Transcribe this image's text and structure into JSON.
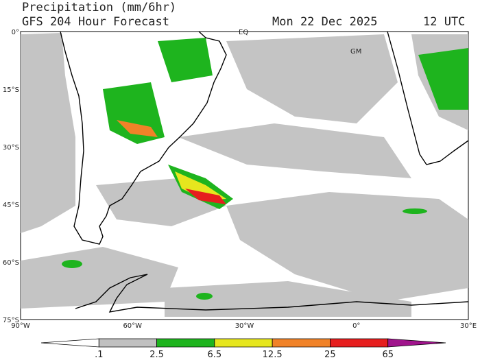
{
  "header": {
    "title": "Precipitation (mm/6hr)",
    "subtitle": "GFS 204 Hour Forecast",
    "date": "Mon 22 Dec 2025",
    "time": "12 UTC"
  },
  "map": {
    "labels": [
      "EQ",
      "GM"
    ],
    "lat_labels": [
      "0°",
      "15°S",
      "30°S",
      "45°S",
      "60°S",
      "75°S"
    ],
    "lon_labels": [
      "90°W",
      "60°W",
      "30°W",
      "0°",
      "30°E"
    ]
  },
  "colorbar": {
    "labels": [
      ".1",
      "2.5",
      "6.5",
      "12.5",
      "25",
      "65"
    ],
    "colors": [
      "#ffffff",
      "#c0c0c0",
      "#1eb41e",
      "#e6e61e",
      "#f08228",
      "#e61e1e",
      "#a0148c"
    ]
  }
}
